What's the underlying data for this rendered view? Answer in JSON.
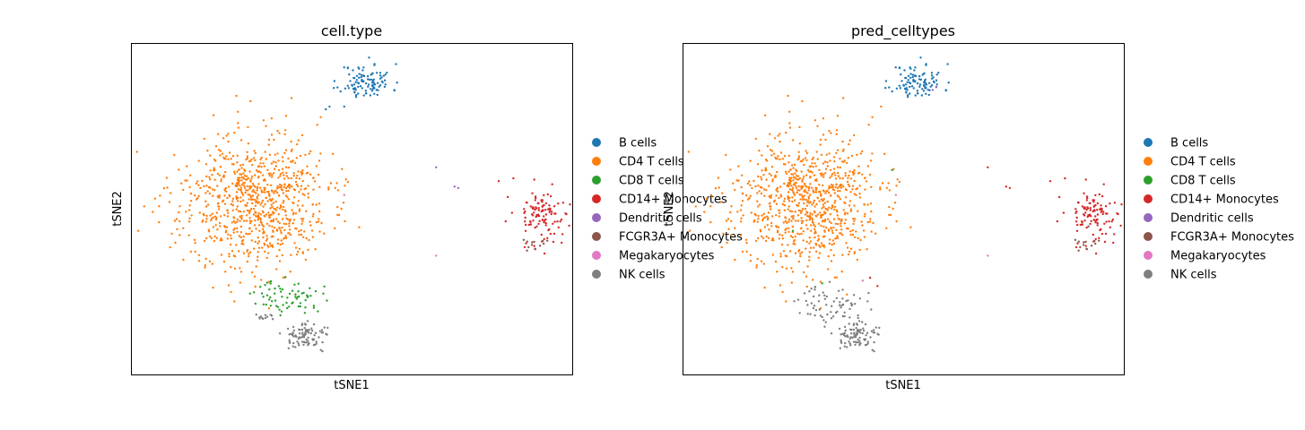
{
  "colors": {
    "B cells": "#1f77b4",
    "CD4 T cells": "#ff7f0e",
    "CD8 T cells": "#2ca02c",
    "CD14+ Monocytes": "#d62728",
    "Dendritic cells": "#9467bd",
    "FCGR3A+ Monocytes": "#8c564b",
    "Megakaryocytes": "#e377c2",
    "NK cells": "#7f7f7f"
  },
  "chart_data": [
    {
      "type": "scatter",
      "title": "cell.type",
      "xlabel": "tSNE1",
      "ylabel": "tSNE2",
      "grid": false,
      "legend_position": "right",
      "legend": [
        "B cells",
        "CD4 T cells",
        "CD8 T cells",
        "CD14+ Monocytes",
        "Dendritic cells",
        "FCGR3A+ Monocytes",
        "Megakaryocytes",
        "NK cells"
      ],
      "xlim": [
        -60,
        60
      ],
      "ylim": [
        -60,
        60
      ],
      "clusters": [
        {
          "category": "B cells",
          "cx": 4,
          "cy": 46,
          "sx": 3.5,
          "sy": 3.2,
          "n": 110,
          "seed": 11
        },
        {
          "category": "CD4 T cells",
          "cx": -27,
          "cy": 2,
          "sx": 10,
          "sy": 12,
          "n": 820,
          "seed": 23
        },
        {
          "category": "CD8 T cells",
          "cx": -17,
          "cy": -32,
          "sx": 4.5,
          "sy": 3,
          "n": 70,
          "seed": 37
        },
        {
          "category": "NK cells",
          "cx": -12,
          "cy": -46,
          "sx": 3.2,
          "sy": 2.2,
          "n": 90,
          "seed": 41
        },
        {
          "category": "NK cells",
          "cx": -24,
          "cy": -39,
          "sx": 1.5,
          "sy": 1,
          "n": 12,
          "seed": 43
        },
        {
          "category": "CD14+ Monocytes",
          "cx": 52,
          "cy": -2,
          "sx": 3.8,
          "sy": 5,
          "n": 110,
          "seed": 53
        },
        {
          "category": "FCGR3A+ Monocytes",
          "cx": 50,
          "cy": -14,
          "sx": 2,
          "sy": 2,
          "n": 14,
          "seed": 59
        }
      ],
      "points": [
        {
          "category": "Dendritic cells",
          "x": 23,
          "y": 15
        },
        {
          "category": "Dendritic cells",
          "x": 28,
          "y": 8
        },
        {
          "category": "Dendritic cells",
          "x": 29,
          "y": 7.5
        },
        {
          "category": "Megakaryocytes",
          "x": -2,
          "y": 5
        },
        {
          "category": "Megakaryocytes",
          "x": 23,
          "y": -17
        },
        {
          "category": "B cells",
          "x": -2,
          "y": 37
        },
        {
          "category": "B cells",
          "x": -6,
          "y": 37
        },
        {
          "category": "B cells",
          "x": -7,
          "y": 36
        },
        {
          "category": "CD4 T cells",
          "x": -58,
          "y": -8
        },
        {
          "category": "CD14+ Monocytes",
          "x": 40,
          "y": 10
        },
        {
          "category": "CD14+ Monocytes",
          "x": 44,
          "y": 11
        }
      ]
    },
    {
      "type": "scatter",
      "title": "pred_celltypes",
      "xlabel": "tSNE1",
      "ylabel": "tSNE2",
      "grid": false,
      "legend_position": "right",
      "legend": [
        "B cells",
        "CD4 T cells",
        "CD8 T cells",
        "CD14+ Monocytes",
        "Dendritic cells",
        "FCGR3A+ Monocytes",
        "Megakaryocytes",
        "NK cells"
      ],
      "xlim": [
        -60,
        60
      ],
      "ylim": [
        -60,
        60
      ],
      "clusters": [
        {
          "category": "B cells",
          "cx": 4,
          "cy": 46,
          "sx": 3.5,
          "sy": 3.2,
          "n": 105,
          "seed": 11
        },
        {
          "category": "CD4 T cells",
          "cx": -27,
          "cy": 2,
          "sx": 10,
          "sy": 12,
          "n": 820,
          "seed": 23
        },
        {
          "category": "NK cells",
          "cx": -19,
          "cy": -35,
          "sx": 4.5,
          "sy": 3.5,
          "n": 70,
          "seed": 37
        },
        {
          "category": "NK cells",
          "cx": -12,
          "cy": -46,
          "sx": 3.2,
          "sy": 2.2,
          "n": 90,
          "seed": 41
        },
        {
          "category": "CD14+ Monocytes",
          "cx": 52,
          "cy": -2,
          "sx": 3.8,
          "sy": 5,
          "n": 110,
          "seed": 53
        },
        {
          "category": "FCGR3A+ Monocytes",
          "cx": 50,
          "cy": -14,
          "sx": 2,
          "sy": 2,
          "n": 14,
          "seed": 59
        }
      ],
      "points": [
        {
          "category": "Dendritic cells",
          "x": 8,
          "y": 43
        },
        {
          "category": "Dendritic cells",
          "x": 9,
          "y": 44
        },
        {
          "category": "CD14+ Monocytes",
          "x": 23,
          "y": 15
        },
        {
          "category": "CD14+ Monocytes",
          "x": 28,
          "y": 8
        },
        {
          "category": "CD14+ Monocytes",
          "x": 29,
          "y": 7.5
        },
        {
          "category": "CD14+ Monocytes",
          "x": -9,
          "y": -25
        },
        {
          "category": "CD14+ Monocytes",
          "x": -7,
          "y": -28
        },
        {
          "category": "CD8 T cells",
          "x": -30,
          "y": -8
        },
        {
          "category": "CD8 T cells",
          "x": -22,
          "y": -27
        },
        {
          "category": "CD8 T cells",
          "x": -3,
          "y": 14
        },
        {
          "category": "Megakaryocytes",
          "x": -2,
          "y": 5
        },
        {
          "category": "Megakaryocytes",
          "x": -11,
          "y": -26
        },
        {
          "category": "Megakaryocytes",
          "x": 23,
          "y": -17
        },
        {
          "category": "CD4 T cells",
          "x": -58,
          "y": -8
        },
        {
          "category": "CD4 T cells",
          "x": -6,
          "y": 37
        },
        {
          "category": "CD14+ Monocytes",
          "x": 40,
          "y": 10
        },
        {
          "category": "CD14+ Monocytes",
          "x": 44,
          "y": 11
        }
      ]
    }
  ]
}
